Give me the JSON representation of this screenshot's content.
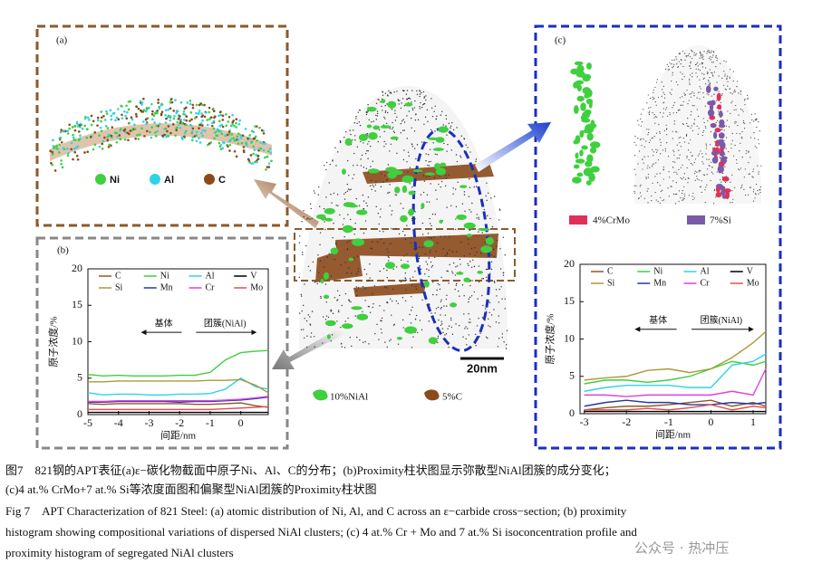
{
  "panels": {
    "a": {
      "label": "(a)",
      "legend": [
        "Ni",
        "Al",
        "C"
      ]
    },
    "center": {
      "legend": [
        "10%NiAl",
        "5%C"
      ],
      "scale": "20nm"
    },
    "c": {
      "label": "(c)",
      "legend": [
        "4%CrMo",
        "7%Si"
      ]
    }
  },
  "chart_data": [
    {
      "type": "line",
      "label": "(b)",
      "xlabel": "间距/nm",
      "ylabel": "原子浓度/%",
      "annotations": [
        "基体",
        "团簇(NiAl)"
      ],
      "x": [
        -5,
        -4.5,
        -4,
        -3.5,
        -3,
        -2.5,
        -2,
        -1.5,
        -1,
        -0.5,
        0,
        0.5,
        0.9
      ],
      "xlim": [
        -5,
        0.9
      ],
      "ylim": [
        0,
        20
      ],
      "xticks": [
        -5,
        -4,
        -3,
        -2,
        -1,
        0
      ],
      "yticks": [
        0,
        5,
        10,
        15,
        20
      ],
      "series": [
        {
          "name": "C",
          "color": "#8b5a2b",
          "values": [
            1.5,
            1.4,
            1.5,
            1.5,
            1.5,
            1.5,
            1.5,
            1.4,
            1.4,
            1.5,
            1.6,
            1.2,
            1
          ]
        },
        {
          "name": "Ni",
          "color": "#3fcf3f",
          "values": [
            5.5,
            5.3,
            5.4,
            5.3,
            5.3,
            5.3,
            5.4,
            5.4,
            5.8,
            7.5,
            8.5,
            8.7,
            8.8
          ]
        },
        {
          "name": "Al",
          "color": "#2fd3e8",
          "values": [
            3,
            2.7,
            2.8,
            2.8,
            2.7,
            2.7,
            2.8,
            2.8,
            2.9,
            3.5,
            5,
            3.8,
            3.5
          ]
        },
        {
          "name": "V",
          "color": "#000000",
          "values": [
            0.3,
            0.3,
            0.3,
            0.3,
            0.3,
            0.3,
            0.3,
            0.3,
            0.3,
            0.3,
            0.3,
            0.3,
            0.3
          ]
        },
        {
          "name": "Si",
          "color": "#a99a38",
          "values": [
            4.5,
            4.5,
            4.6,
            4.6,
            4.6,
            4.6,
            4.6,
            4.6,
            4.7,
            4.7,
            4.8,
            4,
            3
          ]
        },
        {
          "name": "Mn",
          "color": "#27389f",
          "values": [
            1.7,
            1.7,
            1.8,
            1.8,
            1.8,
            1.8,
            1.7,
            1.8,
            1.8,
            1.9,
            2,
            2.2,
            2.4
          ]
        },
        {
          "name": "Cr",
          "color": "#e03fe0",
          "values": [
            1.8,
            1.8,
            1.9,
            1.9,
            1.9,
            1.9,
            1.9,
            1.9,
            1.9,
            2,
            2.1,
            2.3,
            2.5
          ]
        },
        {
          "name": "Mo",
          "color": "#e05050",
          "values": [
            0.7,
            0.7,
            0.7,
            0.7,
            0.7,
            0.7,
            0.7,
            0.7,
            0.7,
            0.8,
            0.9,
            1,
            1.1
          ]
        }
      ]
    },
    {
      "type": "line",
      "xlabel": "间距/nm",
      "ylabel": "原子浓度/%",
      "annotations": [
        "基体",
        "团簇(NiAl)"
      ],
      "x": [
        -3,
        -2.5,
        -2,
        -1.5,
        -1,
        -0.5,
        0,
        0.5,
        1,
        1.3
      ],
      "xlim": [
        -3.1,
        1.3
      ],
      "ylim": [
        0,
        20
      ],
      "xticks": [
        -3,
        -2,
        -1,
        0,
        1
      ],
      "yticks": [
        0,
        5,
        10,
        15,
        20
      ],
      "series": [
        {
          "name": "C",
          "color": "#8b5a2b",
          "values": [
            0.5,
            0.8,
            1,
            1,
            1.2,
            1.5,
            1.8,
            1,
            1.5,
            1
          ]
        },
        {
          "name": "Ni",
          "color": "#3fcf3f",
          "values": [
            4,
            4.5,
            4.5,
            4.2,
            4.5,
            5,
            6,
            7,
            6.5,
            7
          ]
        },
        {
          "name": "Al",
          "color": "#2fd3e8",
          "values": [
            3,
            3.5,
            3.8,
            3.8,
            3.8,
            3.5,
            3.5,
            6.5,
            7,
            8
          ]
        },
        {
          "name": "V",
          "color": "#000000",
          "values": [
            0.3,
            0.3,
            0.3,
            0.3,
            0.3,
            0.3,
            0.3,
            0.3,
            0.3,
            0.3
          ]
        },
        {
          "name": "Si",
          "color": "#a99a38",
          "values": [
            4.5,
            4.8,
            5,
            5.8,
            6,
            5.5,
            6,
            7.5,
            9.5,
            11
          ]
        },
        {
          "name": "Mn",
          "color": "#27389f",
          "values": [
            1,
            1.5,
            1.8,
            1.5,
            1.5,
            1.2,
            1.2,
            1.5,
            1.3,
            1.5
          ]
        },
        {
          "name": "Cr",
          "color": "#e03fe0",
          "values": [
            2.5,
            2.5,
            2.3,
            2.5,
            2.5,
            2.5,
            2.5,
            3,
            2.5,
            6
          ]
        },
        {
          "name": "Mo",
          "color": "#e05050",
          "values": [
            0.5,
            0.5,
            0.5,
            0.7,
            0.5,
            0.8,
            1.2,
            0.5,
            1,
            0.8
          ]
        }
      ]
    }
  ],
  "caption": {
    "zh": [
      "图7　821钢的APT表征(a)ε−碳化物截面中原子Ni、Al、C的分布；(b)Proximity柱状图显示弥散型NiAl团簇的成分变化；",
      "(c)4 at.% CrMo+7 at.% Si等浓度面图和偏聚型NiAl团簇的Proximity柱状图"
    ],
    "en": [
      "Fig 7　APT Characterization of 821 Steel: (a) atomic distribution of Ni, Al, and C across an ε−carbide cross−section; (b) proximity",
      "histogram showing compositional variations of dispersed NiAl clusters; (c) 4 at.% Cr + Mo and 7 at.% Si isoconcentration profile and",
      "proximity histogram of segregated NiAl clusters"
    ]
  },
  "watermark": "公众号 · 热冲压"
}
